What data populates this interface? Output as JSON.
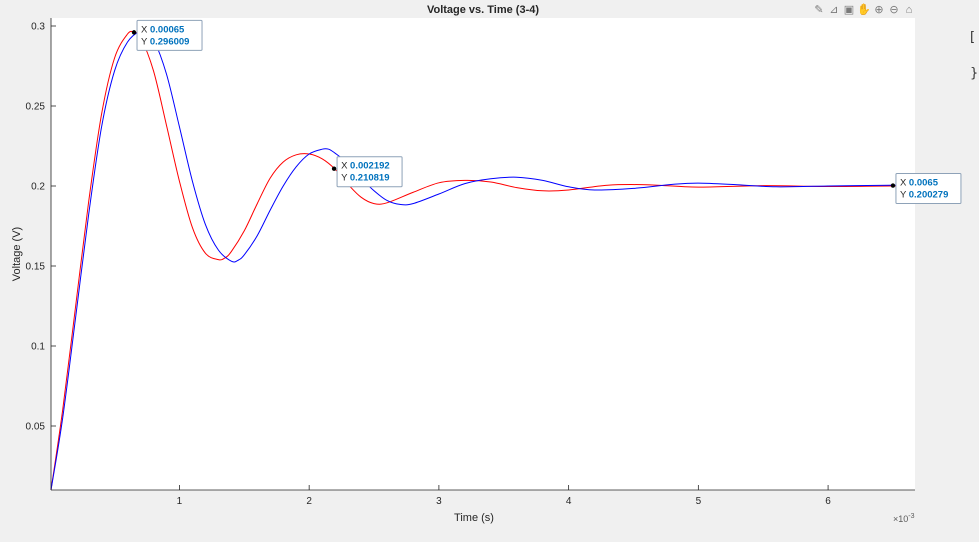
{
  "toolbar": {
    "icons": [
      "brush-icon",
      "data-tips-icon",
      "restore-icon",
      "pan-icon",
      "zoom-in-icon",
      "zoom-out-icon",
      "home-icon"
    ]
  },
  "side_glyphs": [
    "[",
    "}"
  ],
  "chart_data": {
    "type": "line",
    "title": "Voltage vs. Time (3-4)",
    "xlabel": "Time (s)",
    "ylabel": "Voltage (V)",
    "x_exponent_label": "×10",
    "x_exponent_power": "-3",
    "xlim": [
      1e-05,
      0.00667
    ],
    "ylim": [
      0.01,
      0.305
    ],
    "x_ticks": [
      0.001,
      0.002,
      0.003,
      0.004,
      0.005,
      0.006
    ],
    "x_tick_labels": [
      "1",
      "2",
      "3",
      "4",
      "5",
      "6"
    ],
    "y_ticks": [
      0.05,
      0.1,
      0.15,
      0.2,
      0.25,
      0.3
    ],
    "y_tick_labels": [
      "0.05",
      "0.1",
      "0.15",
      "0.2",
      "0.25",
      "0.3"
    ],
    "grid": false,
    "series": [
      {
        "color": "#ff0000",
        "points": [
          [
            1e-05,
            0.01
          ],
          [
            0.0001,
            0.06
          ],
          [
            0.0002,
            0.125
          ],
          [
            0.0003,
            0.19
          ],
          [
            0.0004,
            0.245
          ],
          [
            0.0005,
            0.28
          ],
          [
            0.0006,
            0.295
          ],
          [
            0.00065,
            0.296
          ],
          [
            0.0007,
            0.293
          ],
          [
            0.0008,
            0.272
          ],
          [
            0.0009,
            0.238
          ],
          [
            0.001,
            0.203
          ],
          [
            0.0011,
            0.174
          ],
          [
            0.0012,
            0.158
          ],
          [
            0.0013,
            0.154
          ],
          [
            0.00135,
            0.155
          ],
          [
            0.0014,
            0.159
          ],
          [
            0.0015,
            0.172
          ],
          [
            0.0016,
            0.189
          ],
          [
            0.0017,
            0.205
          ],
          [
            0.0018,
            0.215
          ],
          [
            0.0019,
            0.2195
          ],
          [
            0.002,
            0.22
          ],
          [
            0.0021,
            0.217
          ],
          [
            0.0022,
            0.2105
          ],
          [
            0.0023,
            0.201
          ],
          [
            0.0024,
            0.193
          ],
          [
            0.0025,
            0.189
          ],
          [
            0.0026,
            0.1895
          ],
          [
            0.0028,
            0.196
          ],
          [
            0.003,
            0.202
          ],
          [
            0.0032,
            0.2035
          ],
          [
            0.0034,
            0.2025
          ],
          [
            0.0036,
            0.199
          ],
          [
            0.0038,
            0.197
          ],
          [
            0.004,
            0.1975
          ],
          [
            0.0043,
            0.2005
          ],
          [
            0.0046,
            0.2008
          ],
          [
            0.005,
            0.1993
          ],
          [
            0.0055,
            0.2002
          ],
          [
            0.006,
            0.1997
          ],
          [
            0.0065,
            0.2
          ],
          [
            0.00667,
            0.1995
          ]
        ]
      },
      {
        "color": "#0000ff",
        "points": [
          [
            1e-05,
            0.01
          ],
          [
            0.0001,
            0.055
          ],
          [
            0.0002,
            0.118
          ],
          [
            0.0003,
            0.182
          ],
          [
            0.0004,
            0.237
          ],
          [
            0.0005,
            0.272
          ],
          [
            0.0006,
            0.29
          ],
          [
            0.0007,
            0.297
          ],
          [
            0.00075,
            0.296
          ],
          [
            0.0008,
            0.292
          ],
          [
            0.0009,
            0.27
          ],
          [
            0.001,
            0.237
          ],
          [
            0.0011,
            0.203
          ],
          [
            0.0012,
            0.176
          ],
          [
            0.0013,
            0.16
          ],
          [
            0.0014,
            0.153
          ],
          [
            0.00145,
            0.1535
          ],
          [
            0.0015,
            0.157
          ],
          [
            0.0016,
            0.169
          ],
          [
            0.0017,
            0.185
          ],
          [
            0.0018,
            0.2
          ],
          [
            0.0019,
            0.212
          ],
          [
            0.002,
            0.22
          ],
          [
            0.0021,
            0.223
          ],
          [
            0.00215,
            0.223
          ],
          [
            0.0022,
            0.2205
          ],
          [
            0.0023,
            0.214
          ],
          [
            0.0024,
            0.205
          ],
          [
            0.0025,
            0.197
          ],
          [
            0.0026,
            0.191
          ],
          [
            0.0027,
            0.1885
          ],
          [
            0.0028,
            0.189
          ],
          [
            0.003,
            0.195
          ],
          [
            0.0032,
            0.2015
          ],
          [
            0.0034,
            0.2045
          ],
          [
            0.0036,
            0.2055
          ],
          [
            0.0038,
            0.2035
          ],
          [
            0.004,
            0.1995
          ],
          [
            0.0042,
            0.1975
          ],
          [
            0.0045,
            0.1985
          ],
          [
            0.0048,
            0.201
          ],
          [
            0.005,
            0.2018
          ],
          [
            0.0053,
            0.2008
          ],
          [
            0.0056,
            0.1995
          ],
          [
            0.006,
            0.2
          ],
          [
            0.0065,
            0.2005
          ],
          [
            0.00667,
            0.2003
          ]
        ]
      }
    ],
    "annotations": [
      {
        "x": 0.00065,
        "y": 0.296009,
        "x_label": "X",
        "y_label": "Y",
        "x_text": "0.00065",
        "y_text": "0.296009"
      },
      {
        "x": 0.002192,
        "y": 0.210819,
        "x_label": "X",
        "y_label": "Y",
        "x_text": "0.002192",
        "y_text": "0.210819"
      },
      {
        "x": 0.0065,
        "y": 0.200279,
        "x_label": "X",
        "y_label": "Y",
        "x_text": "0.0065",
        "y_text": "0.200279"
      }
    ],
    "colors": {
      "background": "#f0f0f0",
      "axes": "#ffffff",
      "axis_line": "#262626",
      "tick_text": "#262626",
      "datatip_border": "#7f9fbf",
      "datatip_value": "#0072bd"
    }
  }
}
